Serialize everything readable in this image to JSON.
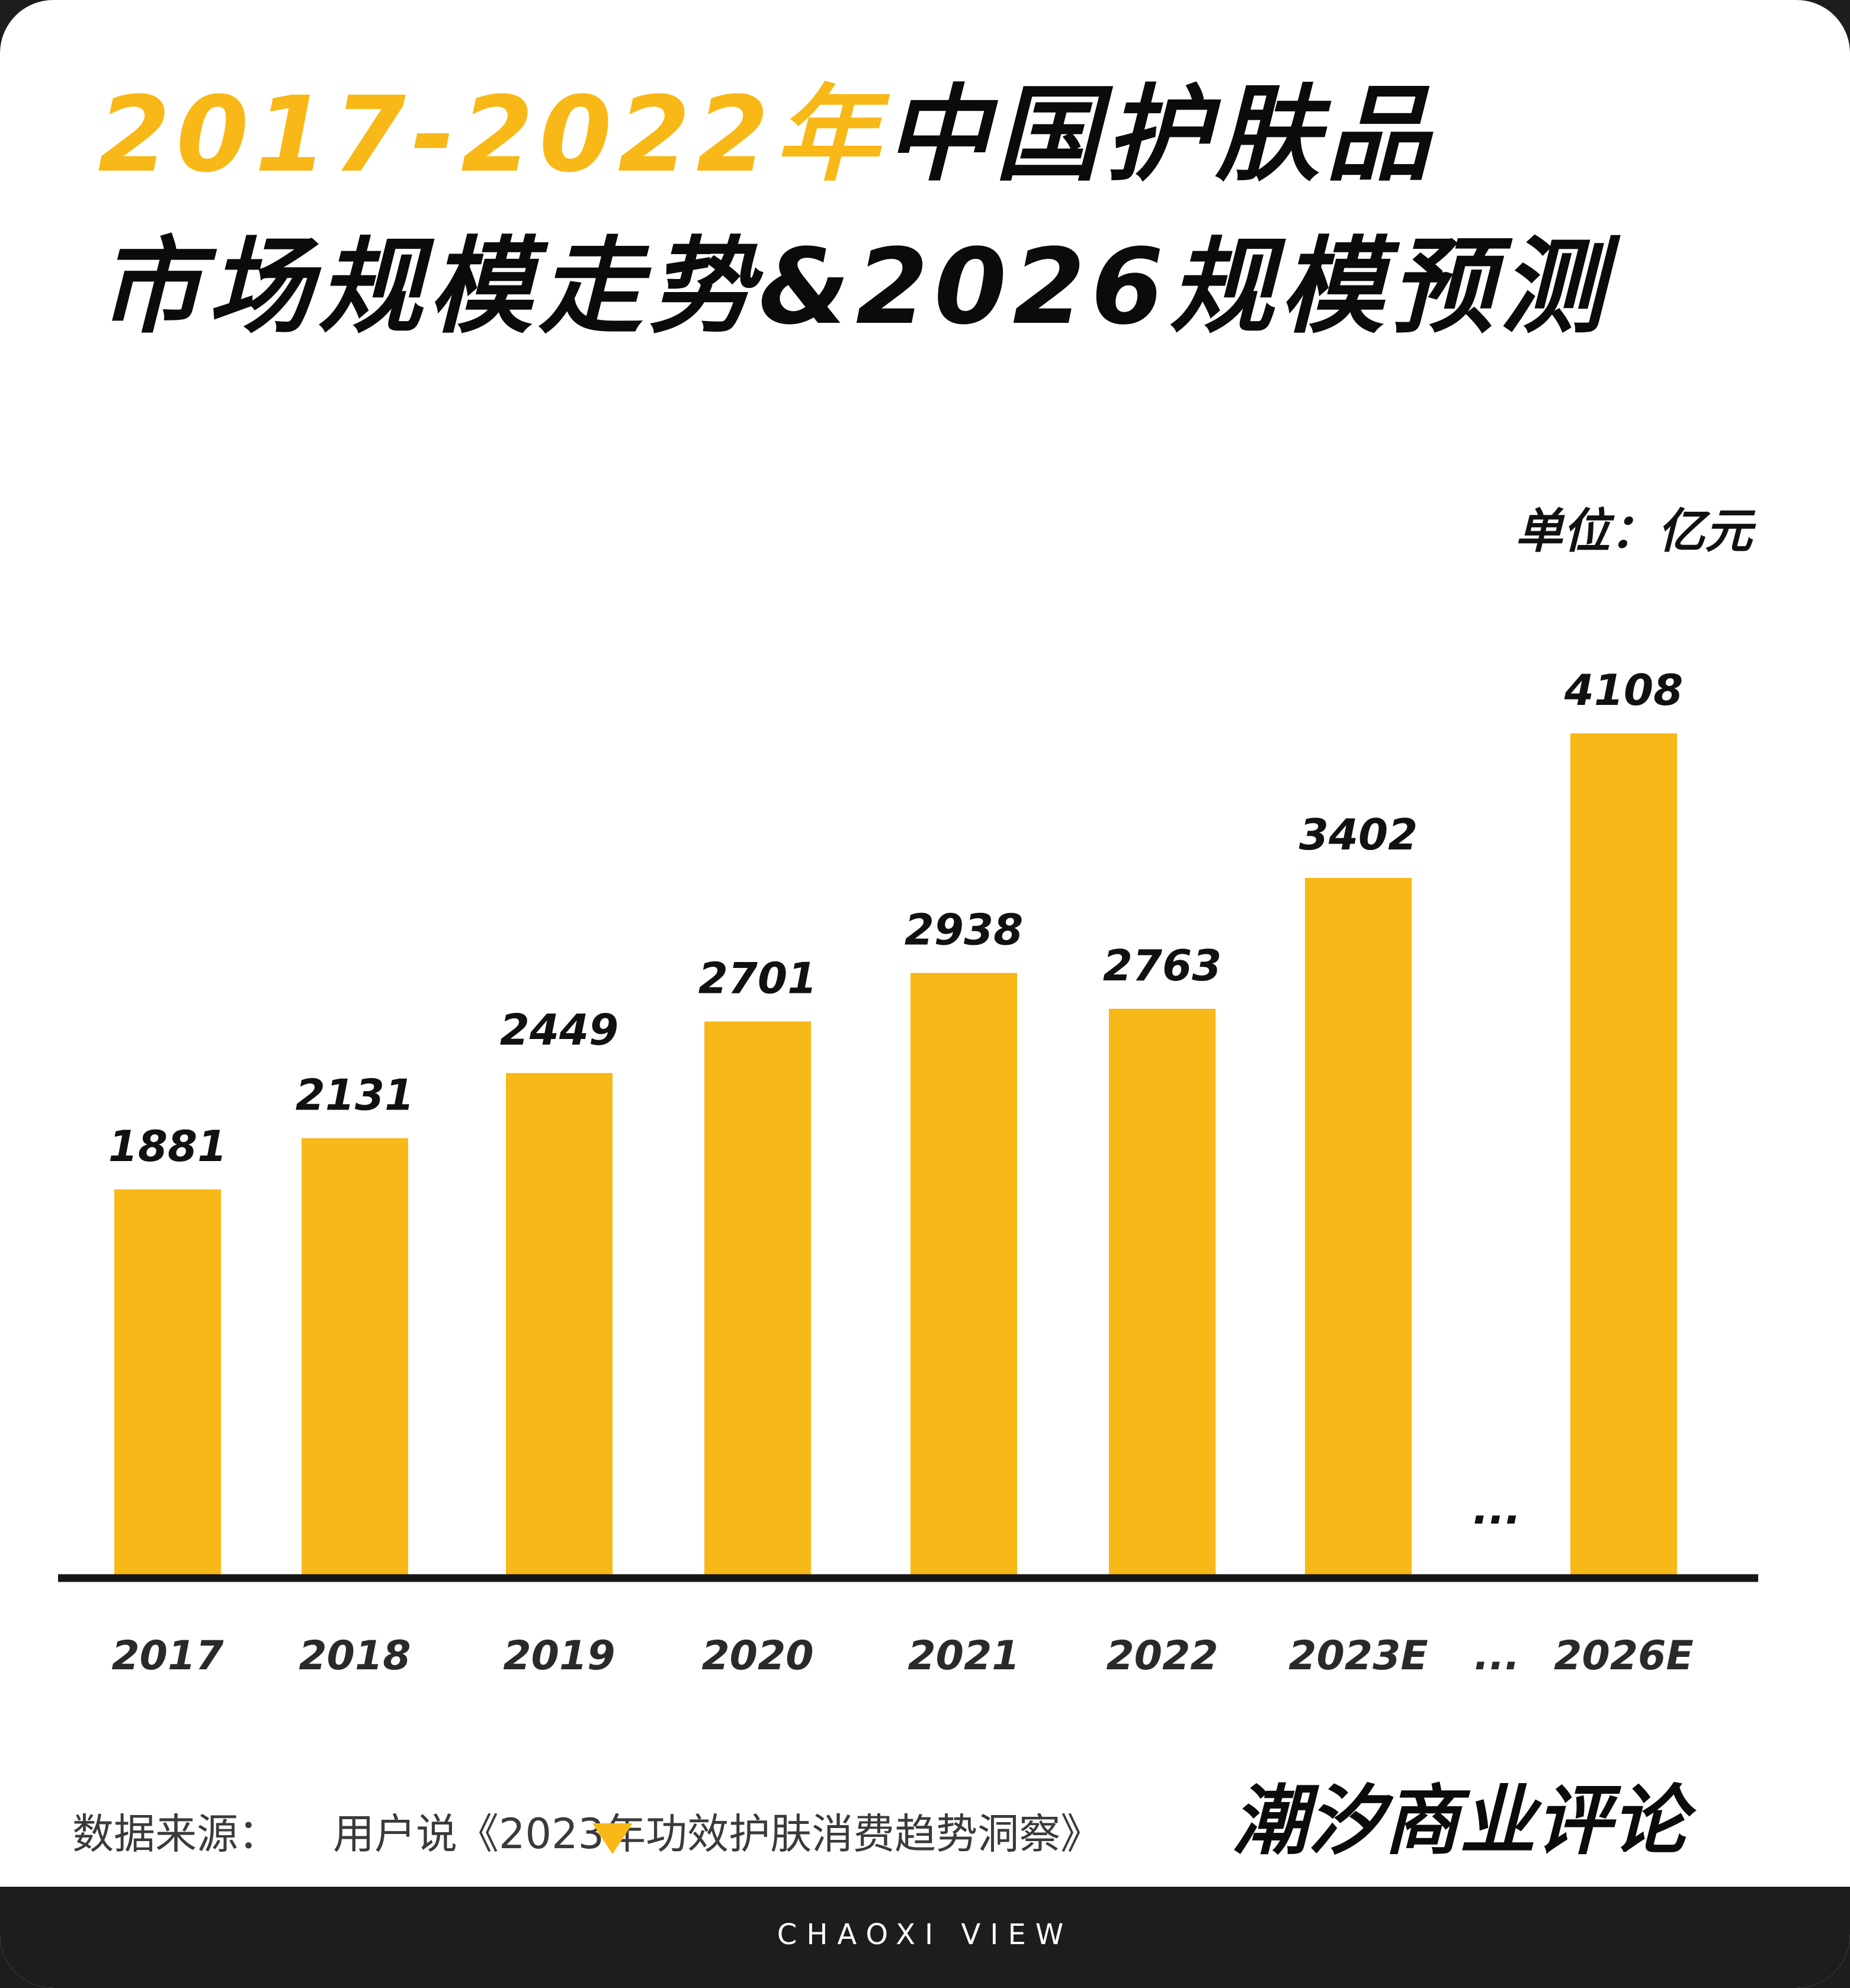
{
  "title": {
    "line1_highlight": "2017-2022年",
    "line1_rest": "中国护肤品",
    "line2": "市场规模走势&2026规模预测"
  },
  "unit_label": "单位：亿元",
  "source": {
    "label": "数据来源：",
    "text": "用户说《2023年功效护肤消费趋势洞察》"
  },
  "brand": {
    "name": "潮汐商业评论",
    "footer": "CHAOXI VIEW"
  },
  "colors": {
    "bar": "#f8b817",
    "title_highlight": "#f8b817",
    "axis": "#161616"
  },
  "chart_data": {
    "type": "bar",
    "categories": [
      "2017",
      "2018",
      "2019",
      "2020",
      "2021",
      "2022",
      "2023E",
      "...",
      "2026E"
    ],
    "values": [
      1881,
      2131,
      2449,
      2701,
      2938,
      2763,
      3402,
      null,
      4108
    ],
    "value_labels": [
      "1881",
      "2131",
      "2449",
      "2701",
      "2938",
      "2763",
      "3402",
      "...",
      "4108"
    ],
    "title": "2017-2022年中国护肤品市场规模走势&2026规模预测",
    "ylabel": "单位：亿元",
    "ylim": [
      0,
      4108
    ],
    "grid": false,
    "legend": "none"
  }
}
